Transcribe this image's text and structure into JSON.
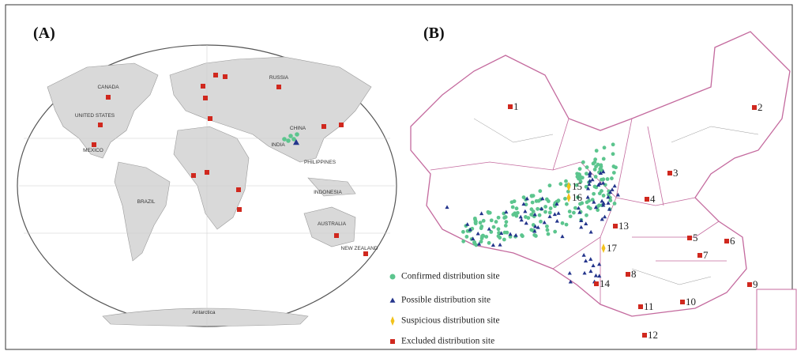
{
  "panels": [
    {
      "label": "(A)",
      "country_labels": [
        "CANADA",
        "UNITED STATES",
        "MEXICO",
        "BRAZIL",
        "RUSSIA",
        "CHINA",
        "INDIA",
        "PHILIPPINES",
        "INDONESIA",
        "AUSTRALIA",
        "NEW ZEALAND",
        "Antarctica"
      ]
    },
    {
      "label": "(B)",
      "site_labels": [
        "1",
        "2",
        "3",
        "4",
        "5",
        "6",
        "7",
        "8",
        "9",
        "10",
        "11",
        "12",
        "13",
        "14",
        "15",
        "16",
        "17"
      ]
    }
  ],
  "legend": [
    "Confirmed distribution site",
    "Possible distribution site",
    "Suspicious distribution site",
    "Excluded distribution site"
  ]
}
